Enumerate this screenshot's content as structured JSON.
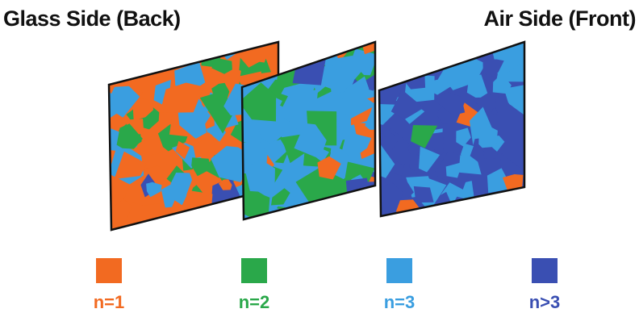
{
  "header": {
    "left_title": "Glass Side (Back)",
    "right_title": "Air Side (Front)"
  },
  "legend": [
    {
      "label": "n=1",
      "color": "#f26a21"
    },
    {
      "label": "n=2",
      "color": "#2aa84a"
    },
    {
      "label": "n=3",
      "color": "#3a9ee0"
    },
    {
      "label": "n>3",
      "color": "#3a4fb2"
    }
  ]
}
